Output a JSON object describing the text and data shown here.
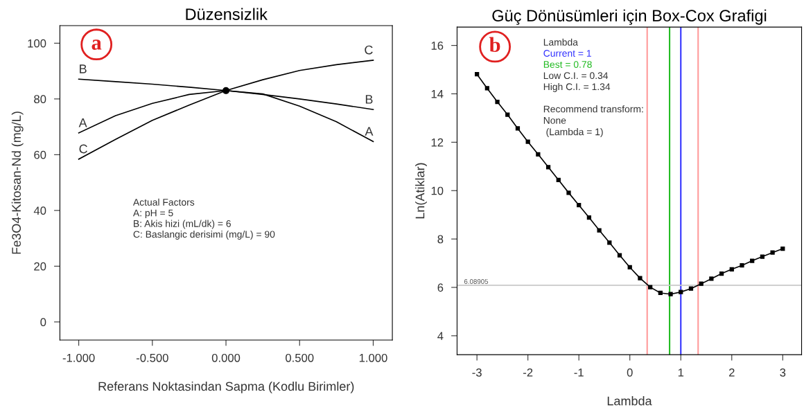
{
  "chart_data": [
    {
      "type": "line",
      "title": "Düzensizlik",
      "xlabel": "Referans Noktasindan Sapma (Kodlu Birimler)",
      "ylabel": "Fe3O4-Kitosan-Nd (mg/L)",
      "x": [
        -1,
        -0.75,
        -0.5,
        -0.25,
        0,
        0.25,
        0.5,
        0.75,
        1
      ],
      "series": [
        {
          "name": "A",
          "color": "#000000",
          "values": [
            67.8,
            74,
            78.4,
            81.6,
            83,
            81.8,
            77.4,
            71.8,
            64.7
          ]
        },
        {
          "name": "B",
          "color": "#000000",
          "values": [
            87.1,
            86.2,
            85.3,
            84.2,
            83,
            81.6,
            80,
            78.2,
            76.2
          ]
        },
        {
          "name": "C",
          "color": "#000000",
          "values": [
            58.4,
            65.5,
            72.3,
            77.8,
            83,
            86.9,
            90.2,
            92.3,
            93.9
          ]
        },
        {
          "type": "scatter",
          "color": "#000000",
          "x": [
            0
          ],
          "values": [
            83
          ]
        }
      ],
      "xlim": [
        -1.128,
        1.13
      ],
      "ylim": [
        -6.5,
        106.3
      ],
      "xticks": [
        {
          "value": -1,
          "label": "-1.000"
        },
        {
          "value": -0.5,
          "label": "-0.500"
        },
        {
          "value": 0,
          "label": "0.000"
        },
        {
          "value": 0.5,
          "label": "0.500"
        },
        {
          "value": 1,
          "label": "1.000"
        }
      ],
      "yticks": [
        0,
        20,
        40,
        60,
        80,
        100
      ],
      "grid": false,
      "legend": false,
      "annotations": [
        "a",
        "Actual Factors",
        "A: pH = 5",
        "B: Akis hizi (mL/dk) = 6",
        "C: Baslangic derisimi (mg/L) = 90"
      ]
    },
    {
      "type": "line",
      "title": "Güç Dönüsümleri için Box-Cox Grafigi",
      "xlabel": "Lambda",
      "ylabel": "Ln(Atiklar)",
      "x": [
        -3,
        -2.8,
        -2.6,
        -2.4,
        -2.2,
        -2,
        -1.8,
        -1.6,
        -1.4,
        -1.2,
        -1,
        -0.8,
        -0.6,
        -0.4,
        -0.2,
        0,
        0.2,
        0.4,
        0.6,
        0.8,
        1,
        1.2,
        1.4,
        1.6,
        1.8,
        2,
        2.2,
        2.4,
        2.6,
        2.8,
        3
      ],
      "series": [
        {
          "color": "#000000",
          "values": [
            14.81,
            14.23,
            13.67,
            13.14,
            12.57,
            12.02,
            11.5,
            10.97,
            10.44,
            9.91,
            9.4,
            8.89,
            8.36,
            7.85,
            7.33,
            6.83,
            6.38,
            6.01,
            5.77,
            5.72,
            5.81,
            5.95,
            6.15,
            6.36,
            6.57,
            6.75,
            6.91,
            7.1,
            7.27,
            7.44,
            7.6
          ]
        }
      ],
      "marker": "square",
      "xlim": [
        -3.39,
        3.37
      ],
      "ylim": [
        3.22,
        16.76
      ],
      "xticks": [
        -3,
        -2,
        -1,
        0,
        1,
        2,
        3
      ],
      "yticks": [
        4,
        6,
        8,
        10,
        12,
        14,
        16
      ],
      "grid": false,
      "legend": false,
      "ref_lines": [
        {
          "axis": "x",
          "value": 1,
          "label": "Current = 1",
          "color": "#3333ff"
        },
        {
          "axis": "x",
          "value": 0.78,
          "label": "Best = 0.78",
          "color": "#22bb22"
        },
        {
          "axis": "x",
          "value": 0.34,
          "color": "#ff9a9a"
        },
        {
          "axis": "x",
          "value": 1.34,
          "color": "#ff9a9a"
        },
        {
          "axis": "y",
          "value": 6.08905,
          "label": "6.08905",
          "color": "#c8c8c8"
        }
      ],
      "annotations": [
        "b",
        "Lambda",
        "Low C.I. = 0.34",
        "High C.I. = 1.34",
        "Recommend transform:\nNone\n (Lambda = 1)"
      ]
    }
  ]
}
